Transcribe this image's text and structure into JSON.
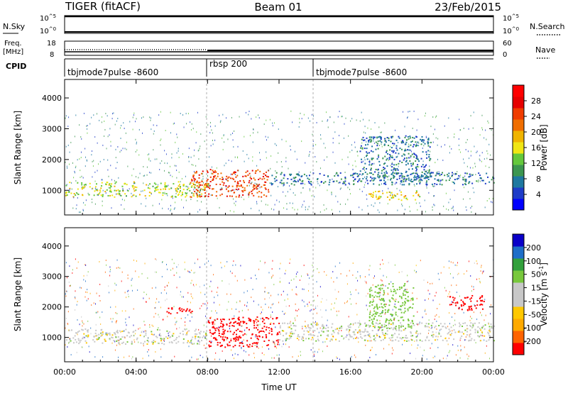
{
  "header": {
    "station": "TIGER (fitACF)",
    "beam": "Beam 01",
    "date": "23/Feb/2015"
  },
  "colors": {
    "power": [
      "#0000ff",
      "#1e3cc8",
      "#1e78a0",
      "#3c9650",
      "#64c83c",
      "#f0e614",
      "#f0b400",
      "#f06e00",
      "#f03c00",
      "#e60000",
      "#ff0000"
    ],
    "velocity": [
      "#ff0000",
      "#ff6400",
      "#ffaa00",
      "#ffc800",
      "#c8c8c8",
      "#c8c8c8",
      "#78c83c",
      "#32a03c",
      "#1e6ec8",
      "#0a00c8"
    ],
    "ground_scatter": "#c8c8c8"
  },
  "chart_data": [
    {
      "type": "line",
      "panel": "N.Sky / N.Search",
      "left_label": "N.Sky",
      "right_label": "N.Search",
      "left_ticks": [
        "10^5",
        "10^0"
      ],
      "right_ticks": [
        "10^5",
        "10^0"
      ],
      "description_values": {
        "n_sky_level": 100000,
        "n_search_level": 100000
      }
    },
    {
      "type": "line",
      "panel": "Freq / Nave",
      "left_label": "Freq. [MHz]",
      "right_label": "Nave",
      "left_ticks": [
        18,
        8
      ],
      "right_ticks": [
        60,
        0
      ],
      "freq_segments": [
        {
          "start": "00:00",
          "end": "08:00",
          "value": 10.5
        },
        {
          "start": "08:00",
          "end": "24:00",
          "value": 10.0
        }
      ]
    },
    {
      "type": "table",
      "panel": "CPID",
      "label": "CPID",
      "segments": [
        {
          "start": "00:00",
          "end": "08:00",
          "name": "tbjmode7pulse -8600"
        },
        {
          "start": "08:00",
          "end": "14:00",
          "name": "rbsp 200"
        },
        {
          "start": "14:00",
          "end": "24:00",
          "name": "tbjmode7pulse -8600"
        }
      ]
    },
    {
      "type": "heatmap",
      "panel": "Power",
      "ylabel": "Slant Range [km]",
      "ylim": [
        200,
        4600
      ],
      "yticks": [
        1000,
        2000,
        3000,
        4000
      ],
      "xlim_hours": [
        0,
        24
      ],
      "colorbar_label": "Power [dB]",
      "colorbar_ticks": [
        4,
        8,
        12,
        16,
        20,
        24,
        28
      ],
      "colorbar_range": [
        0,
        30
      ],
      "bands": [
        {
          "t0": 0,
          "t1": 8,
          "r0": 800,
          "r1": 1300,
          "level": 14
        },
        {
          "t0": 7,
          "t1": 11.5,
          "r0": 800,
          "r1": 1700,
          "level": 24
        },
        {
          "t0": 11.5,
          "t1": 24,
          "r0": 1200,
          "r1": 1600,
          "level": 6
        },
        {
          "t0": 16.5,
          "t1": 20.5,
          "r0": 1300,
          "r1": 2800,
          "level": 6
        },
        {
          "t0": 17,
          "t1": 20,
          "r0": 700,
          "r1": 1000,
          "level": 16
        }
      ]
    },
    {
      "type": "heatmap",
      "panel": "Velocity",
      "xlabel": "Time UT",
      "ylabel": "Slant Range [km]",
      "ylim": [
        200,
        4600
      ],
      "yticks": [
        1000,
        2000,
        3000,
        4000
      ],
      "xlim_hours": [
        0,
        24
      ],
      "xticks": [
        "00:00",
        "04:00",
        "08:00",
        "12:00",
        "16:00",
        "20:00",
        "00:00"
      ],
      "colorbar_label": "Velocity [m s^-1]",
      "colorbar_ticks": [
        -200,
        -100,
        -50,
        -15,
        15,
        50,
        100,
        200
      ],
      "bands": [
        {
          "t0": 0,
          "t1": 8,
          "r0": 800,
          "r1": 1300,
          "v": 0
        },
        {
          "t0": 8,
          "t1": 12,
          "r0": 700,
          "r1": 1700,
          "v": -200
        },
        {
          "t0": 5.5,
          "t1": 7.5,
          "r0": 1800,
          "r1": 2000,
          "v": -200
        },
        {
          "t0": 12,
          "t1": 24,
          "r0": 900,
          "r1": 1500,
          "v": 0
        },
        {
          "t0": 17,
          "t1": 19.5,
          "r0": 1300,
          "r1": 2800,
          "v": 50
        },
        {
          "t0": 21.5,
          "t1": 23.5,
          "r0": 1900,
          "r1": 2400,
          "v": -200
        }
      ]
    }
  ],
  "labels": {
    "n_sky": "N.Sky",
    "n_search": "N.Search",
    "freq_line1": "Freq.",
    "freq_line2": "[MHz]",
    "nave": "Nave",
    "cpid": "CPID",
    "power_cb": "Power [dB]",
    "velocity_cb": "Velocity [m s",
    "velocity_cb_sup": "-1",
    "velocity_cb_end": "]",
    "slant_range": "Slant Range [km]",
    "time_ut": "Time UT",
    "tick_1e5": "10^5",
    "tick_1e0": "10^0",
    "tick_18": "18",
    "tick_8": "8",
    "tick_60": "60",
    "tick_0": "0"
  },
  "time_ticks": [
    "00:00",
    "04:00",
    "08:00",
    "12:00",
    "16:00",
    "20:00",
    "00:00"
  ],
  "range_ticks": [
    "1000",
    "2000",
    "3000",
    "4000"
  ],
  "power_ticks": [
    "4",
    "8",
    "12",
    "16",
    "20",
    "24",
    "28"
  ],
  "velocity_ticks": [
    "-200",
    "-100",
    "-50",
    "-15",
    "15",
    "50",
    "100",
    "200"
  ]
}
